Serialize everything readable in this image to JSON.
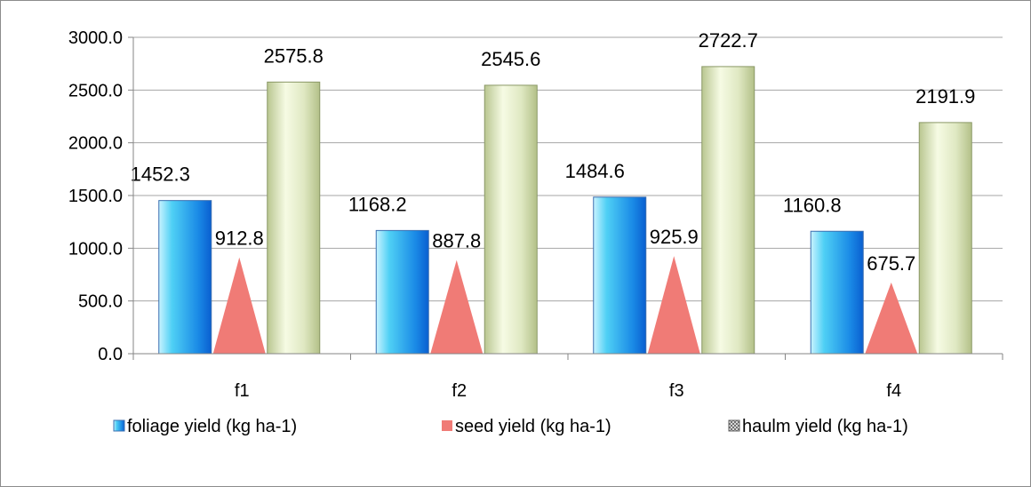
{
  "chart_data": {
    "type": "bar",
    "categories": [
      "f1",
      "f2",
      "f3",
      "f4"
    ],
    "series": [
      {
        "name": "foliage yield (kg ha-1)",
        "values": [
          1452.3,
          1168.2,
          1484.6,
          1160.8
        ],
        "shape": "bar",
        "color": "#1e90e8"
      },
      {
        "name": "seed yield (kg ha-1)",
        "values": [
          912.8,
          887.8,
          925.9,
          675.7
        ],
        "shape": "triangle",
        "color": "#f07b76"
      },
      {
        "name": "haulm yield (kg ha-1)",
        "values": [
          2575.8,
          2545.6,
          2722.7,
          2191.9
        ],
        "shape": "bar",
        "color": "#d5e0b0"
      }
    ],
    "ylim": [
      0,
      3000
    ],
    "yticks": [
      "0.0",
      "500.0",
      "1000.0",
      "1500.0",
      "2000.0",
      "2500.0",
      "3000.0"
    ],
    "data_labels": [
      [
        "1452.3",
        "1168.2",
        "1484.6",
        "1160.8"
      ],
      [
        "912.8",
        "887.8",
        "925.9",
        "675.7"
      ],
      [
        "2575.8",
        "2545.6",
        "2722.7",
        "2191.9"
      ]
    ],
    "grid": true,
    "legend_position": "bottom"
  }
}
